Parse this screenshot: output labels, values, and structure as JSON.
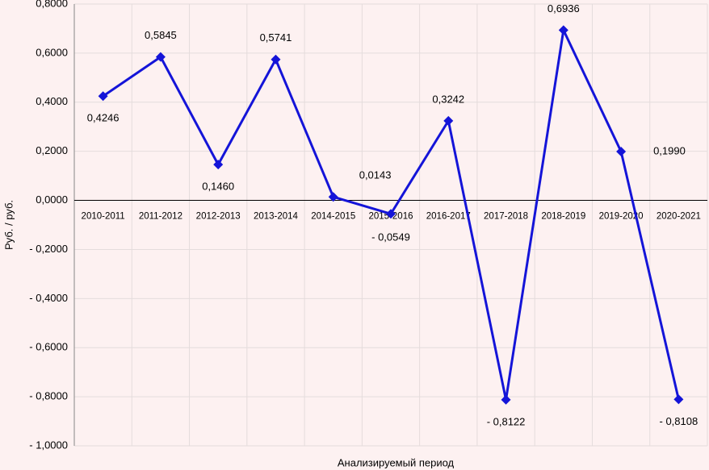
{
  "chart_data": {
    "type": "line",
    "x_label": "Анализируемый период",
    "y_label": "Руб. / руб.",
    "categories": [
      "2010-2011",
      "2011-2012",
      "2012-2013",
      "2013-2014",
      "2014-2015",
      "2015-2016",
      "2016-2017",
      "2017-2018",
      "2018-2019",
      "2019-2020",
      "2020-2021"
    ],
    "values": [
      0.4246,
      0.5845,
      0.146,
      0.5741,
      0.0143,
      -0.0549,
      0.3242,
      -0.8122,
      0.6936,
      0.199,
      -0.8108
    ],
    "value_labels": [
      "0,4246",
      "0,5845",
      "0,1460",
      "0,5741",
      "0,0143",
      "- 0,0549",
      "0,3242",
      "- 0,8122",
      "0,6936",
      "0,1990",
      "- 0,8108"
    ],
    "color": "#1414d8",
    "ylim": [
      -1.0,
      0.8
    ],
    "yticks": [
      {
        "value": 0.8,
        "label": "0,8000"
      },
      {
        "value": 0.6,
        "label": "0,6000"
      },
      {
        "value": 0.4,
        "label": "0,4000"
      },
      {
        "value": 0.2,
        "label": "0,2000"
      },
      {
        "value": 0,
        "label": "0,0000"
      },
      {
        "value": -0.2,
        "label": "- 0,2000"
      },
      {
        "value": -0.4,
        "label": "- 0,4000"
      },
      {
        "value": -0.6,
        "label": "- 0,6000"
      },
      {
        "value": -0.8,
        "label": "- 0,8000"
      },
      {
        "value": -1.0,
        "label": "- 1,0000"
      }
    ],
    "grid": true
  }
}
